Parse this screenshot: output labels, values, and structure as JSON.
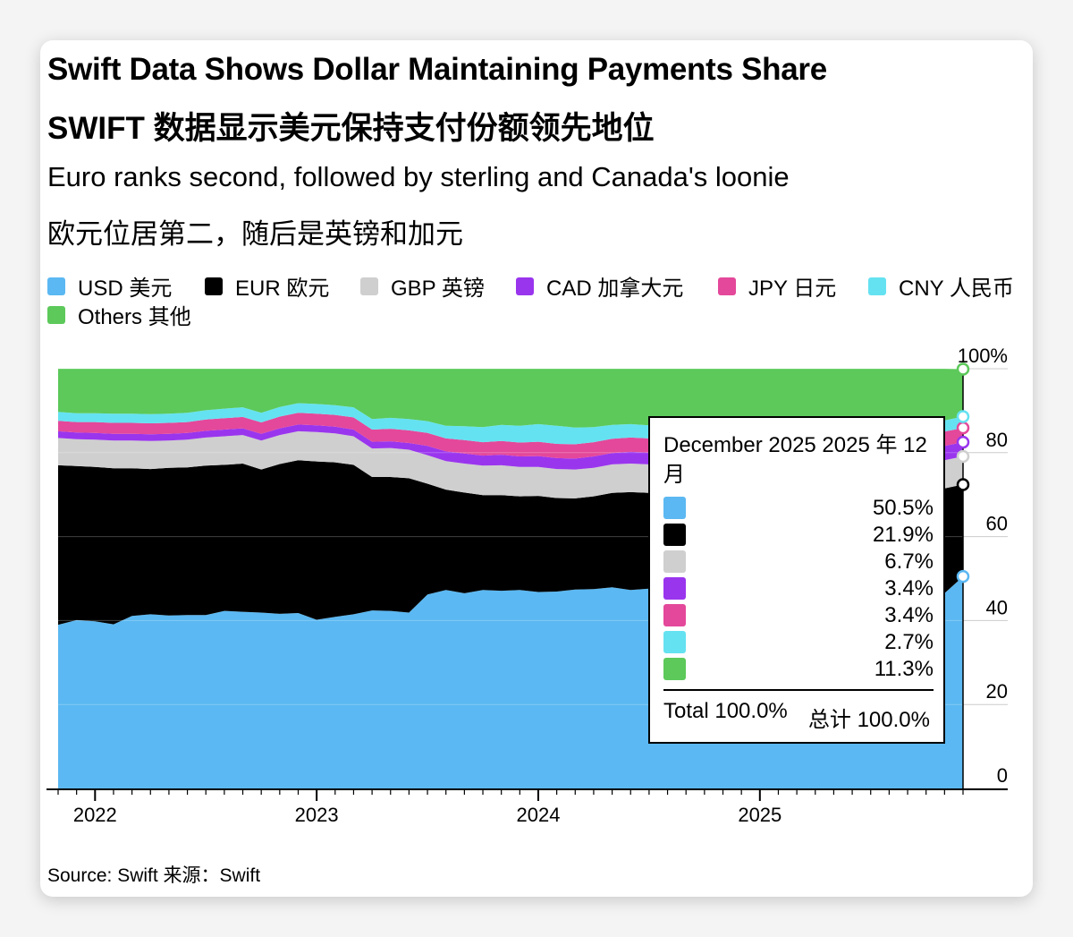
{
  "header": {
    "title_en": "Swift Data Shows Dollar Maintaining Payments Share",
    "title_zh": "SWIFT 数据显示美元保持支付份额领先地位",
    "subtitle_en": "Euro ranks second, followed by sterling and Canada's loonie",
    "subtitle_zh": "欧元位居第二，随后是英镑和加元"
  },
  "legend": [
    {
      "label": "USD  美元",
      "color": "#5bb8f2"
    },
    {
      "label": "EUR  欧元",
      "color": "#000000"
    },
    {
      "label": "GBP  英镑",
      "color": "#cfcfcf"
    },
    {
      "label": "CAD  加拿大元",
      "color": "#9a35ee"
    },
    {
      "label": "JPY  日元",
      "color": "#e4489a"
    },
    {
      "label": "CNY  人民币",
      "color": "#65e2f1"
    },
    {
      "label": "Others  其他",
      "color": "#5cc95a"
    }
  ],
  "source": "Source: Swift  来源：Swift",
  "tooltip": {
    "date": "December 2025  2025 年 12 月",
    "rows": [
      {
        "value": "50.5%",
        "color": "#5bb8f2"
      },
      {
        "value": "21.9%",
        "color": "#000000"
      },
      {
        "value": "6.7%",
        "color": "#cfcfcf"
      },
      {
        "value": "3.4%",
        "color": "#9a35ee"
      },
      {
        "value": "3.4%",
        "color": "#e4489a"
      },
      {
        "value": "2.7%",
        "color": "#65e2f1"
      },
      {
        "value": "11.3%",
        "color": "#5cc95a"
      }
    ],
    "total_en": "Total 100.0%",
    "total_zh": "总计 100.0%"
  },
  "chart_data": {
    "type": "area",
    "stacked": true,
    "x": [
      "2021-11",
      "2021-12",
      "2022-01",
      "2022-02",
      "2022-03",
      "2022-04",
      "2022-05",
      "2022-06",
      "2022-07",
      "2022-08",
      "2022-09",
      "2022-10",
      "2022-11",
      "2022-12",
      "2023-01",
      "2023-02",
      "2023-03",
      "2023-04",
      "2023-05",
      "2023-06",
      "2023-07",
      "2023-08",
      "2023-09",
      "2023-10",
      "2023-11",
      "2023-12",
      "2024-01",
      "2024-02",
      "2024-03",
      "2024-04",
      "2024-05",
      "2024-06",
      "2024-07",
      "2024-08",
      "2024-09",
      "2024-10",
      "2024-11",
      "2024-12",
      "2025-01",
      "2025-02",
      "2025-03",
      "2025-04",
      "2025-05",
      "2025-06",
      "2025-07",
      "2025-08",
      "2025-09",
      "2025-10",
      "2025-11",
      "2025-12"
    ],
    "x_tick_labels": [
      "2022",
      "2023",
      "2024",
      "2025"
    ],
    "y_tick_labels": [
      "0",
      "20",
      "40",
      "60",
      "80",
      "100%"
    ],
    "ylim": [
      0,
      100
    ],
    "grid": true,
    "legend_position": "top",
    "series": [
      {
        "name": "USD  美元",
        "color": "#5bb8f2",
        "values": [
          39.0,
          40.1,
          39.8,
          39.1,
          41.1,
          41.5,
          41.2,
          41.3,
          41.3,
          42.3,
          42.1,
          41.9,
          41.6,
          41.8,
          40.2,
          40.9,
          41.5,
          42.4,
          42.3,
          41.9,
          46.2,
          47.3,
          46.5,
          47.3,
          47.1,
          47.3,
          46.8,
          46.9,
          47.4,
          47.5,
          47.9,
          47.3,
          47.6,
          47.7,
          48.0,
          48.2,
          48.3,
          48.5,
          48.2,
          48.6,
          49.0,
          48.8,
          48.5,
          48.7,
          49.1,
          49.3,
          49.6,
          49.9,
          46.5,
          50.5
        ]
      },
      {
        "name": "EUR  欧元",
        "color": "#000000",
        "values": [
          38.0,
          36.7,
          36.8,
          37.2,
          35.2,
          34.6,
          35.2,
          35.2,
          35.6,
          34.8,
          35.3,
          34.1,
          35.7,
          36.4,
          37.7,
          36.8,
          35.6,
          31.8,
          31.9,
          32.0,
          26.4,
          23.9,
          24.0,
          22.6,
          22.8,
          22.3,
          22.9,
          22.3,
          21.7,
          22.1,
          22.5,
          23.3,
          22.8,
          22.5,
          22.2,
          22.1,
          22.1,
          22.0,
          22.1,
          21.9,
          21.6,
          21.8,
          22.0,
          21.9,
          21.5,
          21.4,
          21.3,
          21.2,
          25.0,
          21.9
        ]
      },
      {
        "name": "GBP  英镑",
        "color": "#cfcfcf",
        "values": [
          6.5,
          6.4,
          6.5,
          6.6,
          6.6,
          6.7,
          6.5,
          6.6,
          6.7,
          6.8,
          6.8,
          6.9,
          6.9,
          6.9,
          7.0,
          6.9,
          6.8,
          6.8,
          6.9,
          6.8,
          6.8,
          6.8,
          6.9,
          7.0,
          7.1,
          7.0,
          6.9,
          6.9,
          6.9,
          6.8,
          6.8,
          6.8,
          6.8,
          6.7,
          6.8,
          6.8,
          6.7,
          6.7,
          6.7,
          6.7,
          6.7,
          6.7,
          6.7,
          6.7,
          6.7,
          6.7,
          6.7,
          6.7,
          6.7,
          6.7
        ]
      },
      {
        "name": "CAD  加拿大元",
        "color": "#9a35ee",
        "values": [
          1.6,
          1.6,
          1.6,
          1.6,
          1.6,
          1.6,
          1.6,
          1.6,
          1.6,
          1.6,
          1.6,
          1.6,
          1.6,
          1.6,
          1.6,
          1.6,
          1.6,
          1.6,
          1.6,
          1.6,
          2.2,
          2.3,
          2.4,
          2.4,
          2.5,
          2.5,
          2.6,
          2.6,
          2.6,
          2.7,
          2.7,
          2.8,
          2.8,
          2.8,
          2.9,
          2.9,
          3.0,
          3.0,
          3.0,
          3.1,
          3.1,
          3.2,
          3.2,
          3.2,
          3.3,
          3.3,
          3.3,
          3.4,
          3.4,
          3.4
        ]
      },
      {
        "name": "JPY  日元",
        "color": "#e4489a",
        "values": [
          2.5,
          2.5,
          2.6,
          2.6,
          2.6,
          2.6,
          2.6,
          2.6,
          2.7,
          2.7,
          2.7,
          2.7,
          2.8,
          2.8,
          2.8,
          2.8,
          2.9,
          2.9,
          3.0,
          3.0,
          3.1,
          3.1,
          3.2,
          3.2,
          3.3,
          3.3,
          3.4,
          3.4,
          3.4,
          3.4,
          3.4,
          3.4,
          3.4,
          3.4,
          3.4,
          3.4,
          3.4,
          3.4,
          3.4,
          3.4,
          3.4,
          3.4,
          3.4,
          3.4,
          3.4,
          3.4,
          3.4,
          3.4,
          3.4,
          3.4
        ]
      },
      {
        "name": "CNY  人民币",
        "color": "#65e2f1",
        "values": [
          2.1,
          2.1,
          2.1,
          2.2,
          2.2,
          2.2,
          2.2,
          2.2,
          2.2,
          2.3,
          2.3,
          2.3,
          2.3,
          2.3,
          2.3,
          2.3,
          2.4,
          2.5,
          2.6,
          2.7,
          2.8,
          3.0,
          3.3,
          3.6,
          3.8,
          4.0,
          4.2,
          4.3,
          4.0,
          3.6,
          3.3,
          3.2,
          3.1,
          3.1,
          3.0,
          3.0,
          2.9,
          2.9,
          2.9,
          2.8,
          2.8,
          2.8,
          2.8,
          2.8,
          2.7,
          2.7,
          2.7,
          2.7,
          2.7,
          2.7
        ]
      },
      {
        "name": "Others  其他",
        "color": "#5cc95a",
        "values": [
          10.3,
          10.6,
          10.6,
          10.7,
          10.7,
          10.8,
          10.7,
          10.5,
          9.9,
          9.5,
          9.2,
          10.5,
          9.1,
          8.2,
          8.4,
          8.7,
          9.2,
          12.0,
          11.7,
          12.0,
          12.5,
          13.6,
          13.7,
          13.9,
          13.4,
          13.6,
          13.2,
          13.6,
          14.0,
          13.9,
          13.4,
          13.2,
          13.5,
          13.8,
          13.7,
          13.6,
          13.6,
          13.5,
          13.7,
          13.5,
          13.4,
          13.3,
          13.4,
          13.3,
          13.3,
          13.2,
          13.0,
          12.7,
          12.3,
          11.3
        ]
      }
    ]
  }
}
